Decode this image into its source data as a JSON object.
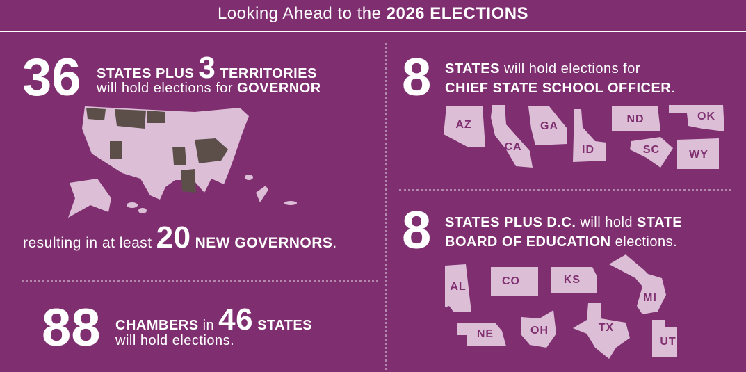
{
  "header": {
    "title_lead": "Looking Ahead to the",
    "title_bold": "2026 ELECTIONS"
  },
  "governor": {
    "count": 36,
    "text_1": "STATES PLUS",
    "territories_count": 3,
    "text_2": "TERRITORIES",
    "text_3": "will hold elections for",
    "office": "GOVERNOR",
    "result_lead": "resulting in at least",
    "new_count": 20,
    "result_bold": "NEW GOVERNORS",
    "result_end": "."
  },
  "chambers": {
    "count": 88,
    "text_1": "CHAMBERS",
    "text_2": "in",
    "states_count": 46,
    "text_3": "STATES",
    "text_4": "will hold elections."
  },
  "chief_state_school_officer": {
    "count": 8,
    "text_1": "STATES",
    "text_2": "will hold elections for",
    "office": "CHIEF STATE SCHOOL OFFICER",
    "end": ".",
    "states": [
      "AZ",
      "CA",
      "GA",
      "ID",
      "ND",
      "SC",
      "OK",
      "WY"
    ]
  },
  "state_board": {
    "count": 8,
    "text_1": "STATES PLUS D.C.",
    "text_2": "will hold",
    "text_3": "STATE",
    "text_4": "BOARD OF EDUCATION",
    "text_5": "elections.",
    "states": [
      "AL",
      "CO",
      "KS",
      "MI",
      "NE",
      "OH",
      "TX",
      "UT"
    ]
  }
}
